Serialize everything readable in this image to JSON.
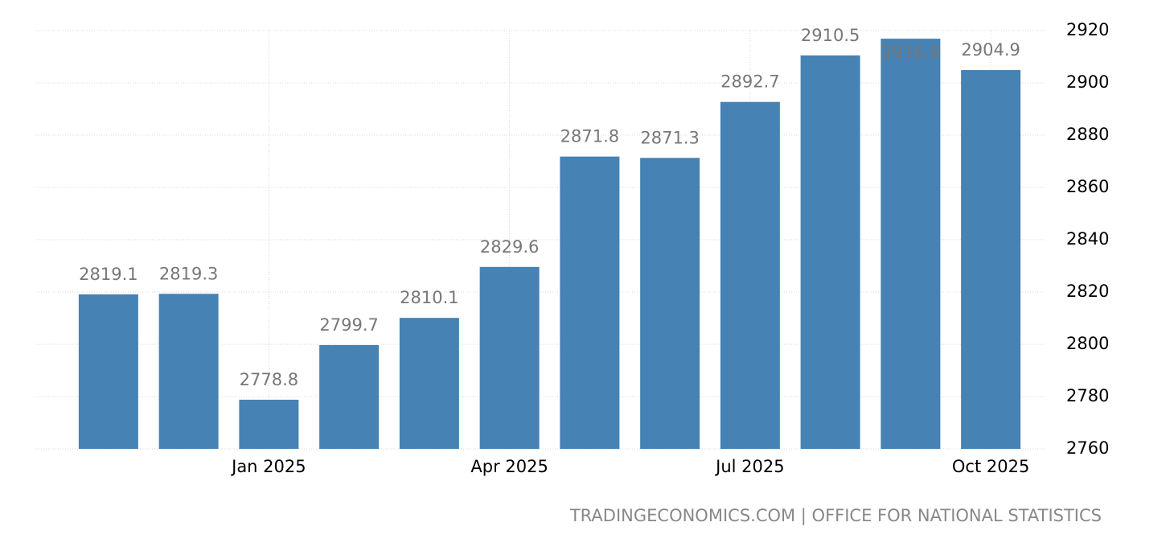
{
  "chart_data": {
    "type": "bar",
    "categories": [
      null,
      null,
      "Jan 2025",
      null,
      null,
      "Apr 2025",
      null,
      null,
      "Jul 2025",
      null,
      null,
      "Oct 2025"
    ],
    "values": [
      2819.1,
      2819.3,
      2778.8,
      2799.7,
      2810.1,
      2829.6,
      2871.8,
      2871.3,
      2892.7,
      2910.5,
      2916.9,
      2904.9
    ],
    "color": "#4682b4",
    "ylim": [
      2760,
      2920
    ],
    "yticks": [
      2760,
      2780,
      2800,
      2820,
      2840,
      2860,
      2880,
      2900,
      2920
    ],
    "grid": true,
    "source": "TRADINGECONOMICS.COM | OFFICE FOR NATIONAL STATISTICS"
  }
}
